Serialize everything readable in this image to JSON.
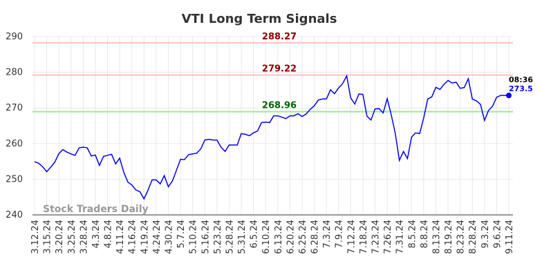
{
  "chart_data": {
    "type": "line",
    "title": "VTI Long Term Signals",
    "watermark": "Stock Traders Daily",
    "last_time": "08:36",
    "categories": [
      "3.12.24",
      null,
      null,
      "3.15.24",
      null,
      null,
      "3.20.24",
      null,
      null,
      "3.25.24",
      null,
      null,
      "3.28.24",
      null,
      null,
      "4.3.24",
      null,
      null,
      "4.8.24",
      null,
      null,
      "4.11.24",
      null,
      null,
      "4.16.24",
      null,
      null,
      "4.19.24",
      null,
      null,
      "4.24.24",
      null,
      null,
      "4.30.24",
      null,
      null,
      "5.7.24",
      null,
      null,
      "5.10.24",
      null,
      null,
      "5.16.24",
      null,
      null,
      "5.23.24",
      null,
      null,
      "5.28.24",
      null,
      null,
      "5.31.24",
      null,
      null,
      "6.5.24",
      null,
      null,
      "6.10.24",
      null,
      null,
      "6.13.24",
      null,
      null,
      "6.20.24",
      null,
      null,
      "6.25.24",
      null,
      null,
      "6.28.24",
      null,
      null,
      "7.3.24",
      null,
      null,
      "7.9.24",
      null,
      null,
      "7.12.24",
      null,
      null,
      "7.18.24",
      null,
      null,
      "7.23.24",
      null,
      null,
      "7.26.24",
      null,
      null,
      "7.31.24",
      null,
      null,
      "8.5.24",
      null,
      null,
      "8.8.24",
      null,
      null,
      "8.13.24",
      null,
      null,
      "8.19.24",
      null,
      null,
      "8.23.24",
      null,
      null,
      "8.28.24",
      null,
      null,
      "9.3.24",
      null,
      null,
      "9.6.24",
      null,
      null,
      "9.11.24"
    ],
    "series": [
      {
        "color": "#0000ee",
        "values": [
          254.9,
          254.5,
          253.5,
          252.1,
          253.4,
          254.8,
          257.2,
          258.3,
          257.6,
          257.1,
          256.7,
          258.8,
          259.0,
          258.8,
          256.5,
          256.8,
          253.9,
          256.4,
          256.7,
          257.0,
          254.3,
          255.9,
          252.0,
          249.2,
          248.4,
          247.0,
          246.5,
          244.5,
          247.0,
          249.8,
          249.8,
          248.7,
          251.0,
          247.9,
          249.5,
          252.5,
          255.6,
          255.5,
          256.9,
          257.1,
          257.3,
          258.5,
          261.0,
          261.2,
          261.0,
          261.0,
          259.0,
          257.8,
          259.6,
          259.6,
          259.6,
          262.8,
          262.6,
          262.2,
          263.0,
          263.5,
          265.9,
          266.0,
          265.9,
          267.8,
          267.8,
          267.4,
          267.0,
          267.8,
          267.8,
          268.4,
          267.6,
          268.3,
          269.6,
          270.6,
          272.2,
          272.5,
          272.5,
          275.1,
          274.0,
          275.6,
          276.8,
          279.0,
          272.8,
          271.1,
          273.9,
          273.8,
          267.7,
          266.6,
          269.7,
          269.8,
          268.6,
          272.6,
          268.0,
          262.8,
          255.3,
          257.8,
          255.8,
          261.8,
          263.0,
          262.8,
          267.2,
          272.5,
          273.1,
          275.8,
          275.2,
          276.6,
          277.7,
          277.0,
          277.2,
          275.5,
          275.7,
          278.2,
          272.5,
          272.0,
          271.0,
          266.5,
          269.3,
          270.5,
          273.0,
          273.5,
          273.5,
          273.5
        ]
      }
    ],
    "reference_lines": [
      {
        "value": 288.27,
        "color": "#ffc0c0",
        "label_color": "#8b0000"
      },
      {
        "value": 279.22,
        "color": "#ffc0c0",
        "label_color": "#8b0000"
      },
      {
        "value": 268.96,
        "color": "#90ee90",
        "label_color": "#006400"
      }
    ],
    "ylim": [
      240,
      290
    ],
    "yticks": [
      240,
      250,
      260,
      270,
      280,
      290
    ],
    "grid": true
  }
}
